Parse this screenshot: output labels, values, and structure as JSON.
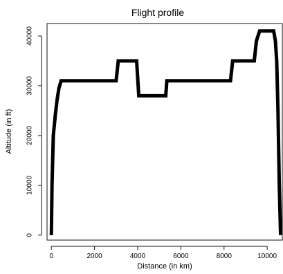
{
  "chart_data": {
    "type": "line",
    "title": "Flight profile",
    "xlabel": "Distance (in km)",
    "ylabel": "Altitude (in ft)",
    "xlim": [
      -200,
      10700
    ],
    "ylim": [
      -1000,
      42500
    ],
    "x_ticks": [
      0,
      2000,
      4000,
      6000,
      8000,
      10000
    ],
    "y_ticks": [
      0,
      10000,
      20000,
      30000,
      40000
    ],
    "grid": false,
    "legend": "none",
    "series": [
      {
        "color": "#000000",
        "points": [
          [
            0,
            0
          ],
          [
            30,
            10000
          ],
          [
            90,
            20000
          ],
          [
            180,
            24000
          ],
          [
            260,
            27000
          ],
          [
            350,
            29500
          ],
          [
            450,
            31000
          ],
          [
            3000,
            31000
          ],
          [
            3100,
            35000
          ],
          [
            3950,
            35000
          ],
          [
            4050,
            28000
          ],
          [
            5300,
            28000
          ],
          [
            5350,
            31000
          ],
          [
            8300,
            31000
          ],
          [
            8400,
            35000
          ],
          [
            9400,
            35000
          ],
          [
            9500,
            39000
          ],
          [
            9650,
            41000
          ],
          [
            10300,
            41000
          ],
          [
            10380,
            39000
          ],
          [
            10440,
            35000
          ],
          [
            10500,
            25000
          ],
          [
            10560,
            10000
          ],
          [
            10620,
            0
          ]
        ]
      }
    ]
  }
}
